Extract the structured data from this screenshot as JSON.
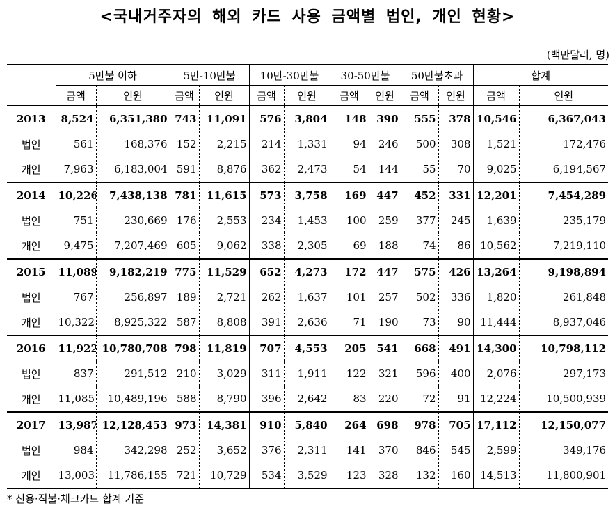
{
  "title": "<국내거주자의 해외 카드 사용 금액별 법인, 개인 현황>",
  "unit": "(백만달러, 명)",
  "headers": {
    "groups": [
      "5만불 이하",
      "5만-10만불",
      "10만-30만불",
      "30-50만불",
      "50만불초과",
      "합계"
    ],
    "amount": "금액",
    "persons": "인원"
  },
  "rows": [
    {
      "label": "2013",
      "total": true,
      "values": [
        "8,524",
        "6,351,380",
        "743",
        "11,091",
        "576",
        "3,804",
        "148",
        "390",
        "555",
        "378",
        "10,546",
        "6,367,043"
      ]
    },
    {
      "label": "법인",
      "values": [
        "561",
        "168,376",
        "152",
        "2,215",
        "214",
        "1,331",
        "94",
        "246",
        "500",
        "308",
        "1,521",
        "172,476"
      ]
    },
    {
      "label": "개인",
      "values": [
        "7,963",
        "6,183,004",
        "591",
        "8,876",
        "362",
        "2,473",
        "54",
        "144",
        "55",
        "70",
        "9,025",
        "6,194,567"
      ]
    },
    {
      "label": "2014",
      "total": true,
      "values": [
        "10,226",
        "7,438,138",
        "781",
        "11,615",
        "573",
        "3,758",
        "169",
        "447",
        "452",
        "331",
        "12,201",
        "7,454,289"
      ]
    },
    {
      "label": "법인",
      "values": [
        "751",
        "230,669",
        "176",
        "2,553",
        "234",
        "1,453",
        "100",
        "259",
        "377",
        "245",
        "1,639",
        "235,179"
      ]
    },
    {
      "label": "개인",
      "values": [
        "9,475",
        "7,207,469",
        "605",
        "9,062",
        "338",
        "2,305",
        "69",
        "188",
        "74",
        "86",
        "10,562",
        "7,219,110"
      ]
    },
    {
      "label": "2015",
      "total": true,
      "values": [
        "11,089",
        "9,182,219",
        "775",
        "11,529",
        "652",
        "4,273",
        "172",
        "447",
        "575",
        "426",
        "13,264",
        "9,198,894"
      ]
    },
    {
      "label": "법인",
      "values": [
        "767",
        "256,897",
        "189",
        "2,721",
        "262",
        "1,637",
        "101",
        "257",
        "502",
        "336",
        "1,820",
        "261,848"
      ]
    },
    {
      "label": "개인",
      "values": [
        "10,322",
        "8,925,322",
        "587",
        "8,808",
        "391",
        "2,636",
        "71",
        "190",
        "73",
        "90",
        "11,444",
        "8,937,046"
      ]
    },
    {
      "label": "2016",
      "total": true,
      "values": [
        "11,922",
        "10,780,708",
        "798",
        "11,819",
        "707",
        "4,553",
        "205",
        "541",
        "668",
        "491",
        "14,300",
        "10,798,112"
      ]
    },
    {
      "label": "법인",
      "values": [
        "837",
        "291,512",
        "210",
        "3,029",
        "311",
        "1,911",
        "122",
        "321",
        "596",
        "400",
        "2,076",
        "297,173"
      ]
    },
    {
      "label": "개인",
      "values": [
        "11,085",
        "10,489,196",
        "588",
        "8,790",
        "396",
        "2,642",
        "83",
        "220",
        "72",
        "91",
        "12,224",
        "10,500,939"
      ]
    },
    {
      "label": "2017",
      "total": true,
      "values": [
        "13,987",
        "12,128,453",
        "973",
        "14,381",
        "910",
        "5,840",
        "264",
        "698",
        "978",
        "705",
        "17,112",
        "12,150,077"
      ]
    },
    {
      "label": "법인",
      "values": [
        "984",
        "342,298",
        "252",
        "3,652",
        "376",
        "2,311",
        "141",
        "370",
        "846",
        "545",
        "2,599",
        "349,176"
      ]
    },
    {
      "label": "개인",
      "values": [
        "13,003",
        "11,786,155",
        "721",
        "10,729",
        "534",
        "3,529",
        "123",
        "328",
        "132",
        "160",
        "14,513",
        "11,800,901"
      ]
    }
  ],
  "note": "* 신용·직불·체크카드 합계 기준"
}
